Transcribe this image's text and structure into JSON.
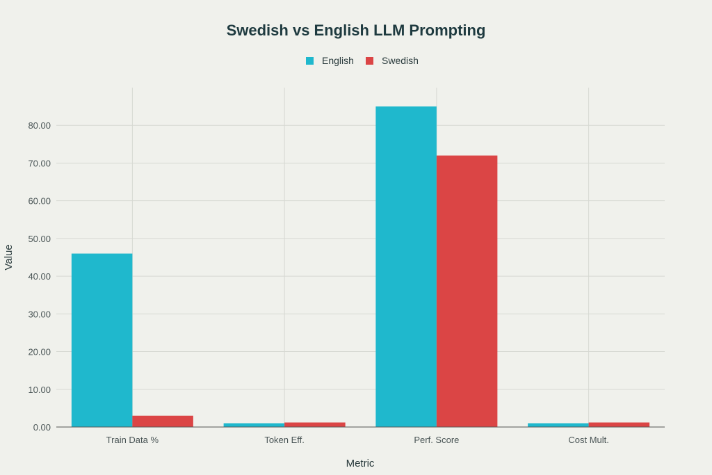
{
  "chart_data": {
    "type": "bar",
    "title": "Swedish vs English LLM Prompting",
    "xlabel": "Metric",
    "ylabel": "Value",
    "categories": [
      "Train Data %",
      "Token Eff.",
      "Perf. Score",
      "Cost Mult."
    ],
    "series": [
      {
        "name": "English",
        "color": "#1fb8cd",
        "values": [
          46.0,
          1.0,
          85.0,
          1.0
        ]
      },
      {
        "name": "Swedish",
        "color": "#db4545",
        "values": [
          3.0,
          1.2,
          72.0,
          1.2
        ]
      }
    ],
    "ylim": [
      0,
      90
    ],
    "yticks": [
      0,
      10,
      20,
      30,
      40,
      50,
      60,
      70,
      80
    ],
    "ytick_labels": [
      "0.00",
      "10.00",
      "20.00",
      "30.00",
      "40.00",
      "50.00",
      "60.00",
      "70.00",
      "80.00"
    ],
    "grid": true,
    "legend_position": "top-center"
  }
}
